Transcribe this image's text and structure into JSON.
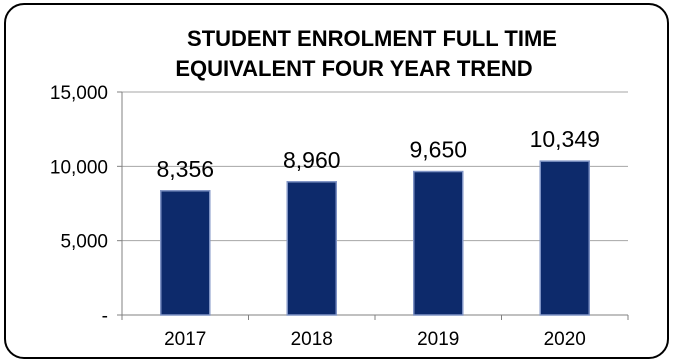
{
  "chart_data": {
    "type": "bar",
    "title_lines": [
      "STUDENT ENROLMENT FULL TIME",
      "EQUIVALENT FOUR YEAR TREND"
    ],
    "categories": [
      "2017",
      "2018",
      "2019",
      "2020"
    ],
    "values": [
      8356,
      8960,
      9650,
      10349
    ],
    "data_labels": [
      "8,356",
      "8,960",
      "9,650",
      "10,349"
    ],
    "ylim": [
      0,
      15000
    ],
    "y_ticks": [
      0,
      5000,
      10000,
      15000
    ],
    "y_tick_labels": [
      "-",
      "5,000",
      "10,000",
      "15,000"
    ],
    "grid": true,
    "legend": "none",
    "colors": {
      "bar_fill": "#0d2a6b",
      "bar_edge": "#7f93c4",
      "grid": "#a6a6a6",
      "axis": "#808080",
      "border": "#000000"
    }
  }
}
